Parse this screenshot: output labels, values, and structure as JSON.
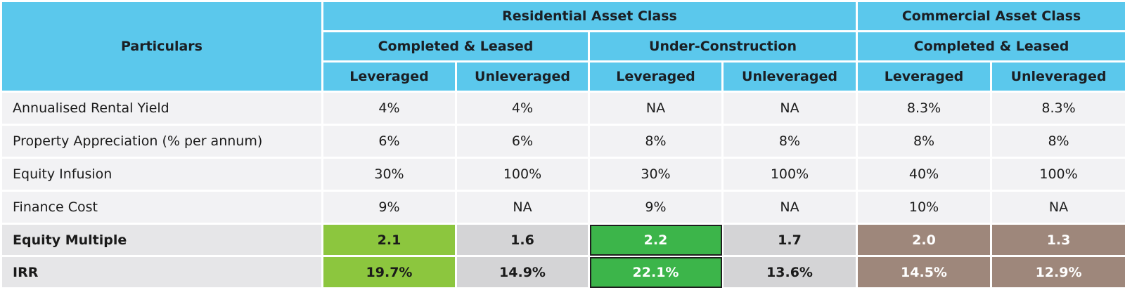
{
  "header": {
    "particulars": "Particulars",
    "residential": "Residential Asset Class",
    "commercial": "Commercial Asset Class",
    "res_completed": "Completed & Leased",
    "res_under_construction": "Under-Construction",
    "com_completed": "Completed & Leased",
    "sub": [
      "Leveraged",
      "Unleveraged",
      "Leveraged",
      "Unleveraged",
      "Leveraged",
      "Unleveraged"
    ]
  },
  "rows": [
    {
      "label": "Annualised Rental Yield",
      "values": [
        "4%",
        "4%",
        "NA",
        "NA",
        "8.3%",
        "8.3%"
      ]
    },
    {
      "label": "Property Appreciation (% per annum)",
      "values": [
        "6%",
        "6%",
        "8%",
        "8%",
        "8%",
        "8%"
      ]
    },
    {
      "label": "Equity Infusion",
      "values": [
        "30%",
        "100%",
        "30%",
        "100%",
        "40%",
        "100%"
      ]
    },
    {
      "label": "Finance Cost",
      "values": [
        "9%",
        "NA",
        "9%",
        "NA",
        "10%",
        "NA"
      ]
    }
  ],
  "summary_rows": [
    {
      "label": "Equity Multiple",
      "values": [
        "2.1",
        "1.6",
        "2.2",
        "1.7",
        "2.0",
        "1.3"
      ]
    },
    {
      "label": "IRR",
      "values": [
        "19.7%",
        "14.9%",
        "22.1%",
        "13.6%",
        "14.5%",
        "12.9%"
      ]
    }
  ],
  "colors": {
    "header_bg": "#5bc8ec",
    "light_green": "#8cc63e",
    "green": "#3cb54a",
    "brown": "#9e877b",
    "grey": "#d4d4d6"
  }
}
